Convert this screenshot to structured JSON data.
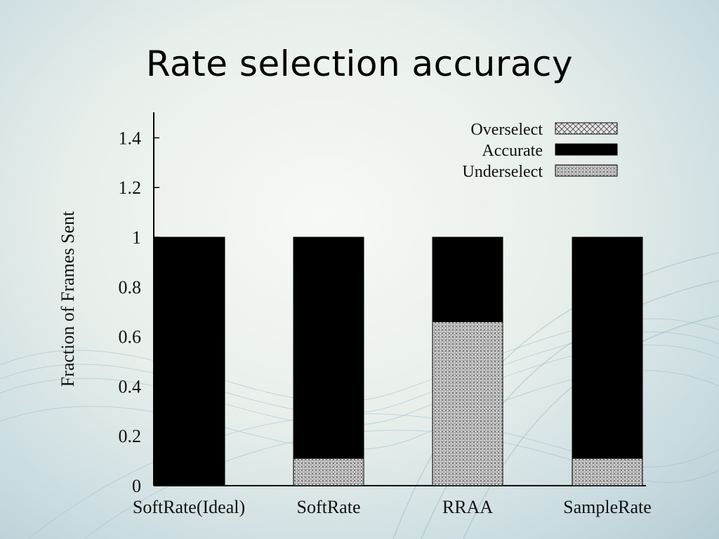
{
  "slide": {
    "title": "Rate selection accuracy"
  },
  "chart_data": {
    "type": "bar",
    "stacked": true,
    "categories": [
      "SoftRate(Ideal)",
      "SoftRate",
      "RRAA",
      "SampleRate"
    ],
    "series": [
      {
        "name": "Underselect",
        "values": [
          0,
          0.11,
          0.66,
          0.11
        ],
        "pattern": "dense-crosshatch"
      },
      {
        "name": "Accurate",
        "values": [
          1.0,
          0.89,
          0.34,
          0.89
        ],
        "color": "#000000"
      },
      {
        "name": "Overselect",
        "values": [
          0,
          0,
          0,
          0
        ],
        "pattern": "crosshatch"
      }
    ],
    "legend_order": [
      "Overselect",
      "Accurate",
      "Underselect"
    ],
    "ylabel": "Fraction of Frames Sent",
    "xlabel": "",
    "ylim": [
      0,
      1.5
    ],
    "yticks": [
      0,
      0.2,
      0.4,
      0.6,
      0.8,
      1,
      1.2,
      1.4
    ],
    "ytick_labels": [
      "0",
      "0.2",
      "0.4",
      "0.6",
      "0.8",
      "1",
      "1.2",
      "1.4"
    ],
    "grid": false,
    "legend_position": "top-right"
  }
}
